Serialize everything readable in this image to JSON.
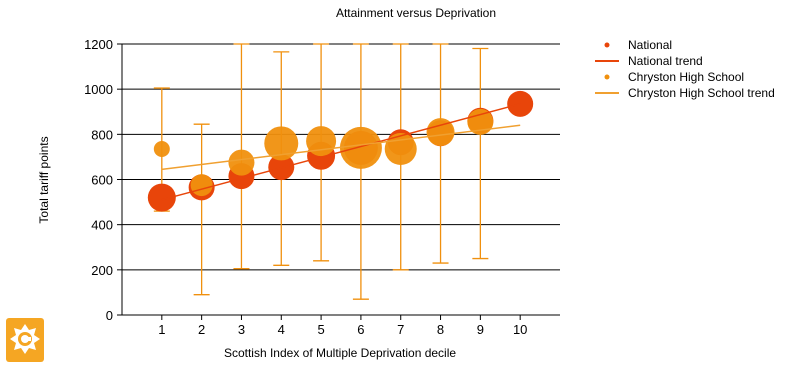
{
  "chart_data": {
    "type": "scatter",
    "title": "Attainment versus Deprivation",
    "xlabel": "Scottish Index of Multiple Deprivation decile",
    "ylabel": "Total tariff points",
    "xlim": [
      0,
      11
    ],
    "ylim": [
      0,
      1200
    ],
    "xticks": [
      "1",
      "2",
      "3",
      "4",
      "5",
      "6",
      "7",
      "8",
      "9",
      "10"
    ],
    "yticks": [
      "0",
      "200",
      "400",
      "600",
      "800",
      "1000",
      "1200"
    ],
    "grid": "horizontal",
    "legend_position": "right",
    "series": [
      {
        "name": "National",
        "kind": "bubble",
        "color": "#e8450a",
        "x": [
          1,
          2,
          3,
          4,
          5,
          6,
          7,
          8,
          9,
          10
        ],
        "y": [
          520,
          565,
          615,
          655,
          705,
          740,
          765,
          805,
          860,
          935
        ],
        "size": [
          14,
          13,
          13,
          13,
          14,
          17,
          13,
          13,
          13,
          13
        ]
      },
      {
        "name": "National trend",
        "kind": "line",
        "color": "#e8450a",
        "x": [
          1,
          10
        ],
        "y": [
          510,
          935
        ]
      },
      {
        "name": "Chryston High School",
        "kind": "bubble_errorbar",
        "color": "#f0900e",
        "x": [
          1,
          2,
          3,
          4,
          5,
          6,
          7,
          8,
          9
        ],
        "y": [
          735,
          575,
          675,
          760,
          770,
          740,
          735,
          810,
          855
        ],
        "size": [
          8,
          11,
          13,
          17,
          15,
          21,
          16,
          14,
          13
        ],
        "err_low": [
          460,
          90,
          205,
          220,
          240,
          70,
          200,
          230,
          250
        ],
        "err_high": [
          1005,
          845,
          1200,
          1165,
          1200,
          1200,
          1200,
          1200,
          1180
        ]
      },
      {
        "name": "Chryston High School trend",
        "kind": "line",
        "color": "#f0a030",
        "x": [
          1,
          10
        ],
        "y": [
          645,
          840
        ]
      }
    ]
  }
}
